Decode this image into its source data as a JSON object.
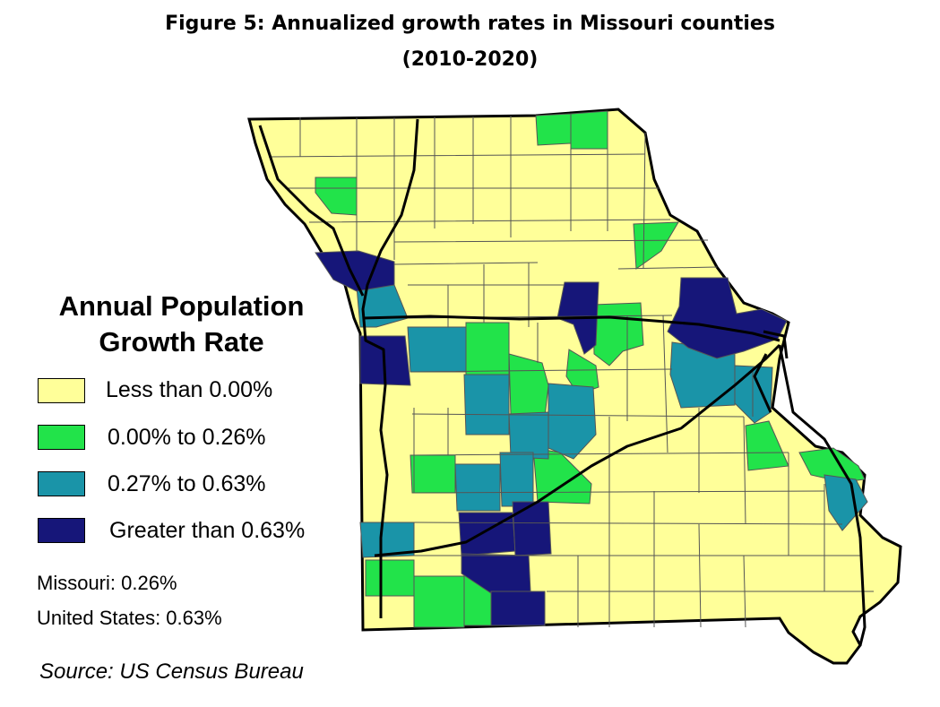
{
  "title": {
    "line1": "Figure 5: Annualized growth rates in Missouri counties",
    "line2": "(2010-2020)"
  },
  "legend": {
    "title_line1": "Annual Population",
    "title_line2": "Growth Rate",
    "items": [
      {
        "label": "Less than 0.00%",
        "color": "#ffff99"
      },
      {
        "label": "0.00% to 0.26%",
        "color": "#22e34a"
      },
      {
        "label": "0.27% to 0.63%",
        "color": "#1a94a8"
      },
      {
        "label": "Greater than 0.63%",
        "color": "#161679"
      }
    ]
  },
  "stats": {
    "missouri": "Missouri: 0.26%",
    "us": "United States: 0.63%"
  },
  "source": "Source: US Census Bureau",
  "map": {
    "state": "Missouri",
    "county_border_color": "#555555",
    "highway_color": "#000000"
  }
}
